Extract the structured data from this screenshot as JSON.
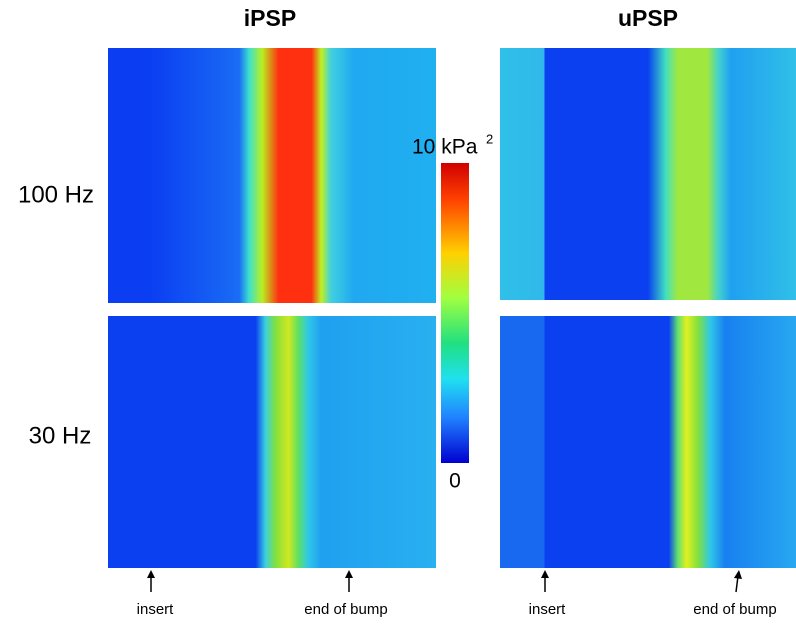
{
  "columns": [
    {
      "title": "iPSP"
    },
    {
      "title": "uPSP"
    }
  ],
  "rows": [
    {
      "label": "100 Hz"
    },
    {
      "label": "30 Hz"
    }
  ],
  "colorbar": {
    "max_label": "10 kPa",
    "max_sup": "2",
    "min_label": "0"
  },
  "markers": [
    {
      "label": "insert"
    },
    {
      "label": "end of bump"
    },
    {
      "label": "insert"
    },
    {
      "label": "end of bump"
    }
  ]
}
